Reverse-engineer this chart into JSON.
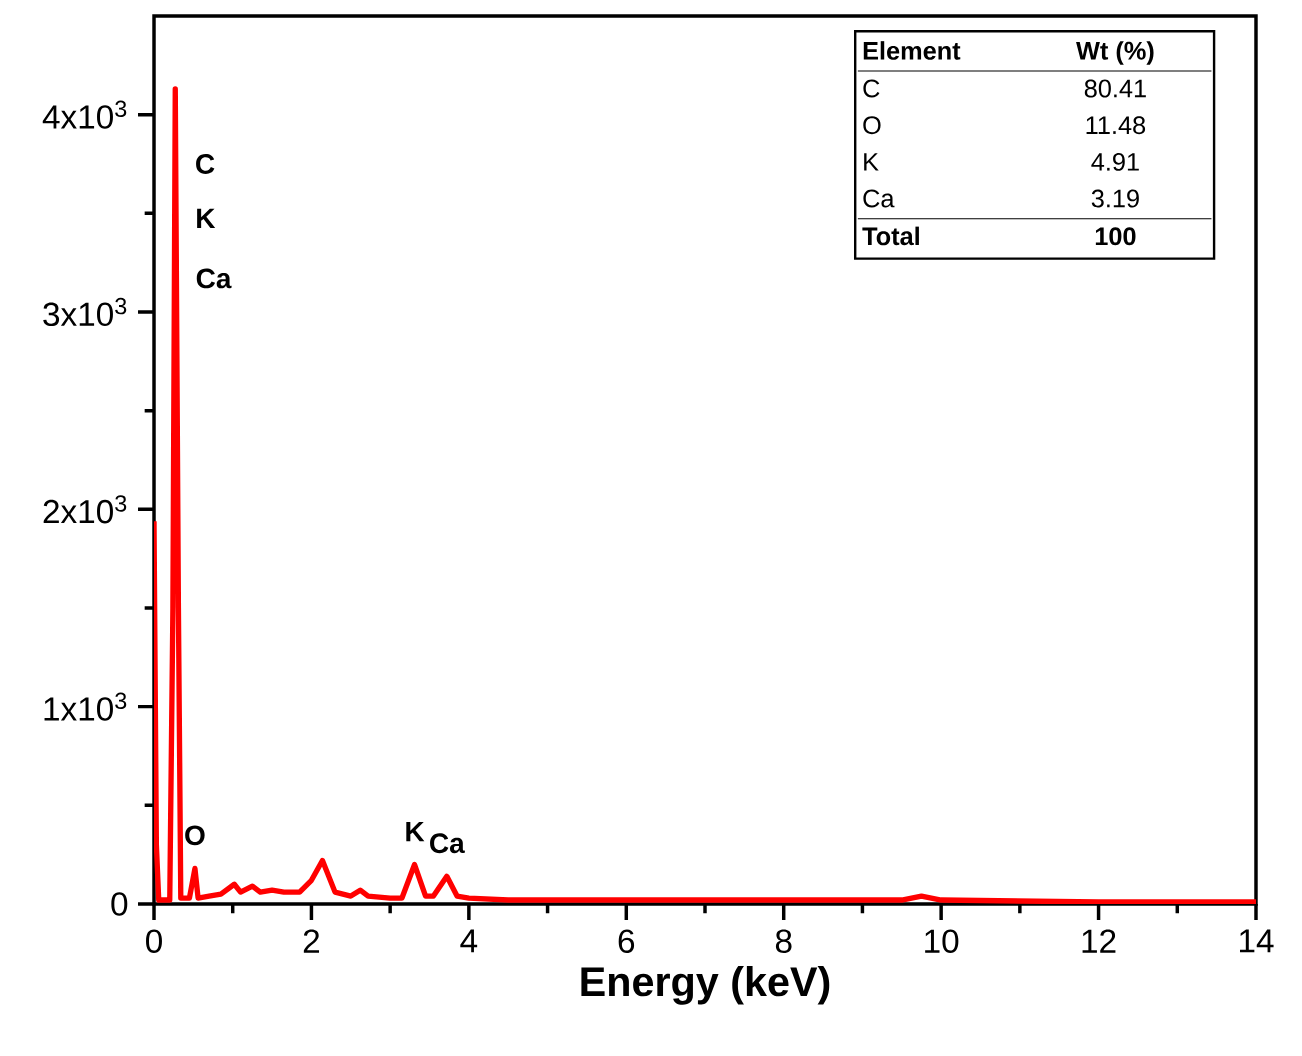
{
  "chart_data": [
    {
      "type": "line",
      "xlabel": "Energy (keV)",
      "x": [
        0.0,
        0.03,
        0.06,
        0.2,
        0.24,
        0.27,
        0.31,
        0.34,
        0.45,
        0.52,
        0.56,
        0.7,
        0.85,
        1.02,
        1.1,
        1.25,
        1.35,
        1.5,
        1.65,
        1.85,
        2.0,
        2.14,
        2.3,
        2.5,
        2.62,
        2.72,
        3.0,
        3.15,
        3.31,
        3.45,
        3.55,
        3.72,
        3.85,
        4.0,
        4.5,
        5.0,
        6.0,
        8.0,
        9.5,
        9.75,
        10.0,
        12.0,
        14.0
      ],
      "series": [
        {
          "color": "#ff0000",
          "values": [
            1940,
            300,
            20,
            20,
            1500,
            4130,
            1500,
            30,
            30,
            180,
            30,
            40,
            50,
            100,
            60,
            90,
            60,
            70,
            60,
            60,
            120,
            220,
            60,
            40,
            70,
            40,
            30,
            30,
            200,
            40,
            40,
            140,
            40,
            30,
            20,
            20,
            20,
            20,
            20,
            40,
            20,
            10,
            10
          ]
        }
      ],
      "xlim": [
        0,
        14
      ],
      "ylim": [
        0,
        4500
      ],
      "xticks": [
        0,
        2,
        4,
        6,
        8,
        10,
        12,
        14,
        {
          "value": 1,
          "label": null
        },
        {
          "value": 3,
          "label": null
        },
        {
          "value": 5,
          "label": null
        },
        {
          "value": 7,
          "label": null
        },
        {
          "value": 9,
          "label": null
        },
        {
          "value": 11,
          "label": null
        },
        {
          "value": 13,
          "label": null
        }
      ],
      "yticks": [
        0,
        {
          "value": 1000,
          "label": "1x10$^{3}$"
        },
        {
          "value": 2000,
          "label": "2x10$^{3}$"
        },
        {
          "value": 3000,
          "label": "3x10$^{3}$"
        },
        {
          "value": 4000,
          "label": "4x10$^{3}$"
        },
        {
          "value": 500,
          "label": null
        },
        {
          "value": 1500,
          "label": null
        },
        {
          "value": 2500,
          "label": null
        },
        {
          "value": 3500,
          "label": null
        }
      ],
      "line_style": "solid",
      "marker": "none",
      "annotations": [
        {
          "text": "C",
          "x": 0.276,
          "y": 3750
        },
        {
          "text": "K",
          "x": 0.28,
          "y": 3475
        },
        {
          "text": "Ca",
          "x": 0.285,
          "y": 3170
        },
        {
          "text": "O",
          "x": 0.52,
          "y": 180
        },
        {
          "text": "K",
          "x": 3.31,
          "y": 200
        },
        {
          "text": "Ca",
          "x": 3.72,
          "y": 140
        }
      ]
    },
    {
      "type": "other",
      "xlabel": "Element",
      "ylabel": "Wt (%)",
      "categories": [
        "C",
        "O",
        "K",
        "Ca",
        "Total"
      ],
      "values": [
        80.41,
        11.48,
        4.91,
        3.19,
        100
      ],
      "data_labels": true
    }
  ]
}
